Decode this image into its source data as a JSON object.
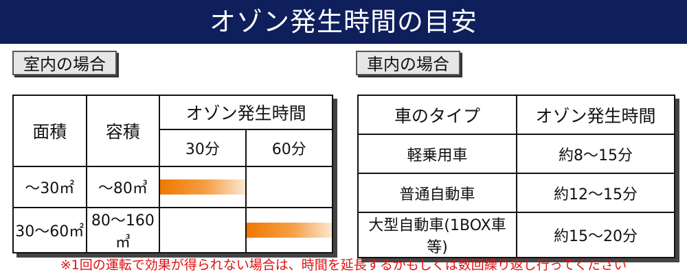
{
  "title": "オゾン発生時間の目安",
  "indoor": {
    "section_label": "室内の場合",
    "headers": {
      "area": "面積",
      "volume": "容積",
      "time": "オゾン発生時間",
      "t30": "30分",
      "t60": "60分"
    },
    "rows": [
      {
        "area": "～30㎡",
        "volume": "～80㎥",
        "duration_minutes": 30
      },
      {
        "area": "30～60㎡",
        "volume": "80～160㎥",
        "duration_minutes": 60
      }
    ],
    "bar_color": "#f07800"
  },
  "car": {
    "section_label": "車内の場合",
    "headers": {
      "type": "車のタイプ",
      "time": "オゾン発生時間"
    },
    "rows": [
      {
        "type": "軽乗用車",
        "time": "約8～15分"
      },
      {
        "type": "普通自動車",
        "time": "約12～15分"
      },
      {
        "type": "大型自動車(1BOX車等)",
        "time": "約15～20分"
      }
    ]
  },
  "note": "※1回の運転で効果が得られない場合は、時間を延長するかもしくは数回繰り返し行ってください",
  "colors": {
    "banner": "#0f1f5c",
    "note": "#e01010"
  }
}
